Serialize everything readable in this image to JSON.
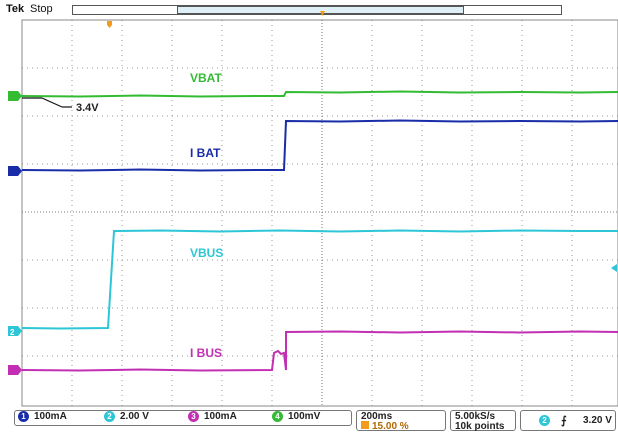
{
  "header": {
    "brand": "Tek",
    "status": "Stop"
  },
  "channels": {
    "vbat": {
      "label": "VBAT",
      "color": "#33bb33",
      "marker": ""
    },
    "ibat": {
      "label": "I BAT",
      "color": "#1a2da8",
      "marker": ""
    },
    "vbus": {
      "label": "VBUS",
      "color": "#2cc6d6",
      "marker": "2"
    },
    "ibus": {
      "label": "I BUS",
      "color": "#c22fb2",
      "marker": ""
    }
  },
  "annotation": {
    "text": "3.4V"
  },
  "footer": {
    "ch1": {
      "num": "1",
      "scale": "100mA",
      "color": "#1a2da8"
    },
    "ch2": {
      "num": "2",
      "scale": "2.00 V",
      "color": "#2cc6d6"
    },
    "ch3": {
      "num": "3",
      "scale": "100mA",
      "color": "#c22fb2"
    },
    "ch4": {
      "num": "4",
      "scale": "100mV",
      "color": "#33bb33"
    },
    "timebase": "200ms",
    "trigger_pos": "15.00 %",
    "sample_rate": "5.00kS/s",
    "record_length": "10k points",
    "trigger_source": "2",
    "trigger_level": "3.20 V"
  }
}
